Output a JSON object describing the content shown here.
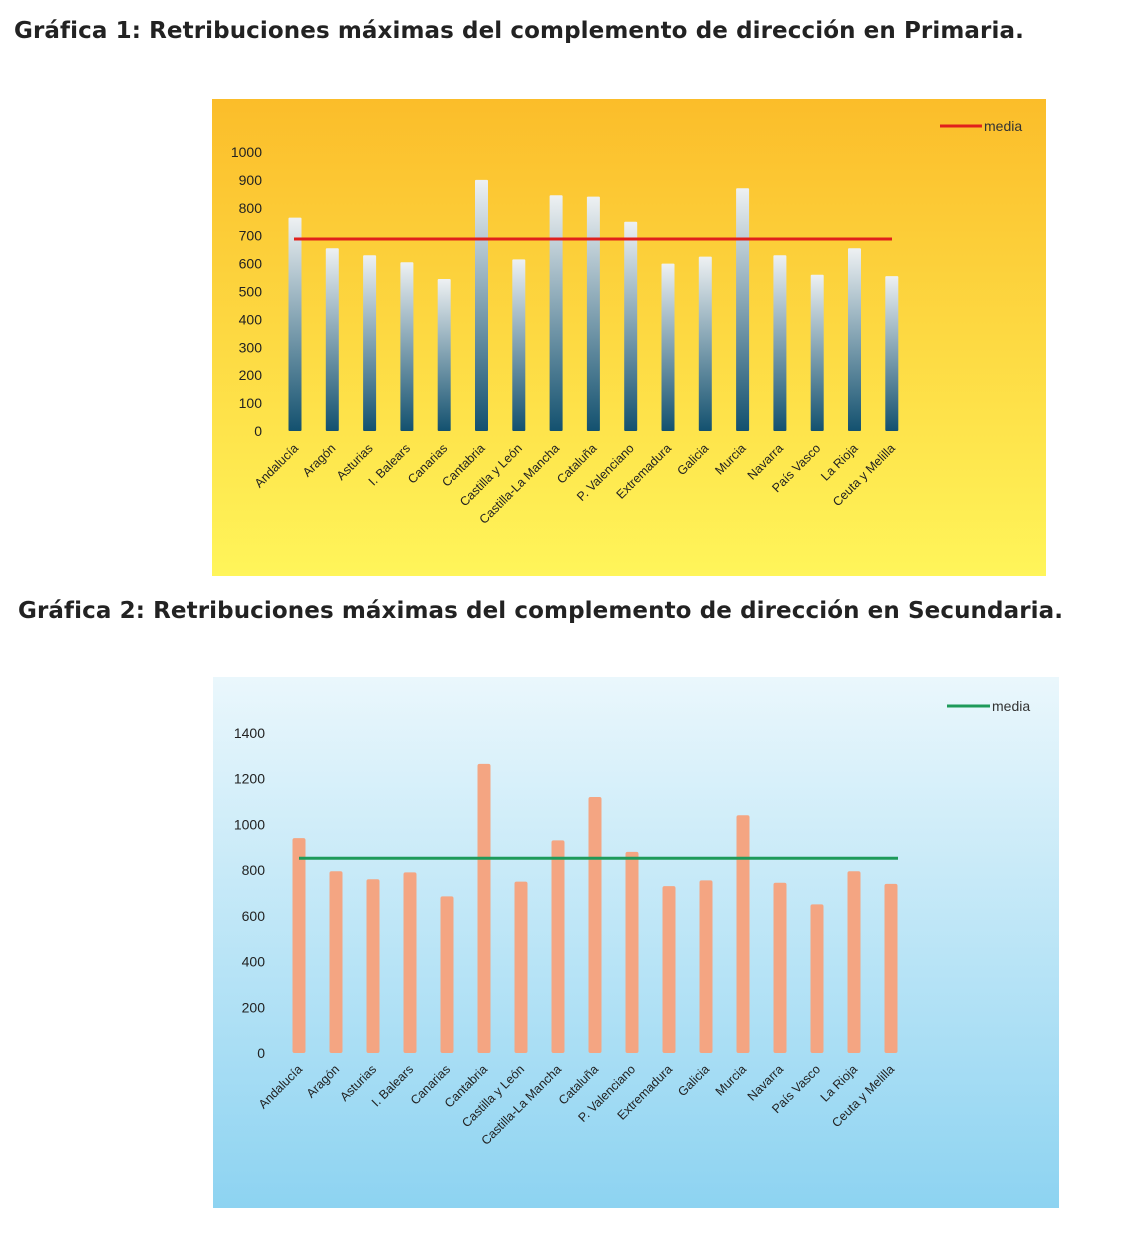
{
  "headings": {
    "chart1_title": "Gráfica 1: Retribuciones máximas del complemento de dirección en Primaria.",
    "chart2_title": "Gráfica 2: Retribuciones máximas del complemento de dirección en Secundaria."
  },
  "chart_data": [
    {
      "type": "bar",
      "title": "Gráfica 1: Retribuciones máximas del complemento de dirección en Primaria.",
      "xlabel": "",
      "ylabel": "",
      "categories": [
        "Andalucía",
        "Aragón",
        "Asturias",
        "I. Balears",
        "Canarias",
        "Cantabria",
        "Castilla y León",
        "Castilla-La Mancha",
        "Cataluña",
        "P. Valenciano",
        "Extremadura",
        "Galicia",
        "Murcia",
        "Navarra",
        "País Vasco",
        "La Rioja",
        "Ceuta y Melilla"
      ],
      "values": [
        765,
        655,
        630,
        605,
        545,
        900,
        615,
        845,
        840,
        750,
        600,
        625,
        870,
        630,
        560,
        655,
        555
      ],
      "yticks": [
        "0",
        "100",
        "200",
        "300",
        "400",
        "500",
        "600",
        "700",
        "800",
        "900",
        "1000"
      ],
      "ylim": [
        0,
        1000
      ],
      "reference_line": {
        "name": "media",
        "value": 688,
        "color": "#e0201c"
      },
      "legend": {
        "entries": [
          "media"
        ],
        "position": "top-right"
      },
      "grid": false,
      "colors": {
        "bar_top": "#eef1f3",
        "bar_bottom": "#13516f",
        "bg_top": "#fbbd2a",
        "bg_bottom": "#fff55a"
      }
    },
    {
      "type": "bar",
      "title": "Gráfica 2: Retribuciones máximas del complemento de dirección en Secundaria.",
      "xlabel": "",
      "ylabel": "",
      "categories": [
        "Andalucía",
        "Aragón",
        "Asturias",
        "I. Balears",
        "Canarias",
        "Cantabria",
        "Castilla y León",
        "Castilla-La Mancha",
        "Cataluña",
        "P. Valenciano",
        "Extremadura",
        "Galicia",
        "Murcia",
        "Navarra",
        "País Vasco",
        "La Rioja",
        "Ceuta y Melilla"
      ],
      "values": [
        940,
        795,
        760,
        790,
        685,
        1265,
        750,
        930,
        1120,
        880,
        730,
        755,
        1040,
        745,
        650,
        795,
        740
      ],
      "yticks": [
        "0",
        "200",
        "400",
        "600",
        "800",
        "1000",
        "1200",
        "1400"
      ],
      "ylim": [
        0,
        1400
      ],
      "reference_line": {
        "name": "media",
        "value": 852,
        "color": "#1e9a5a"
      },
      "legend": {
        "entries": [
          "media"
        ],
        "position": "top-right"
      },
      "grid": false,
      "colors": {
        "bar": "#f4a582",
        "bg_top": "#eaf7fc",
        "bg_bottom": "#8dd3f1"
      }
    }
  ]
}
